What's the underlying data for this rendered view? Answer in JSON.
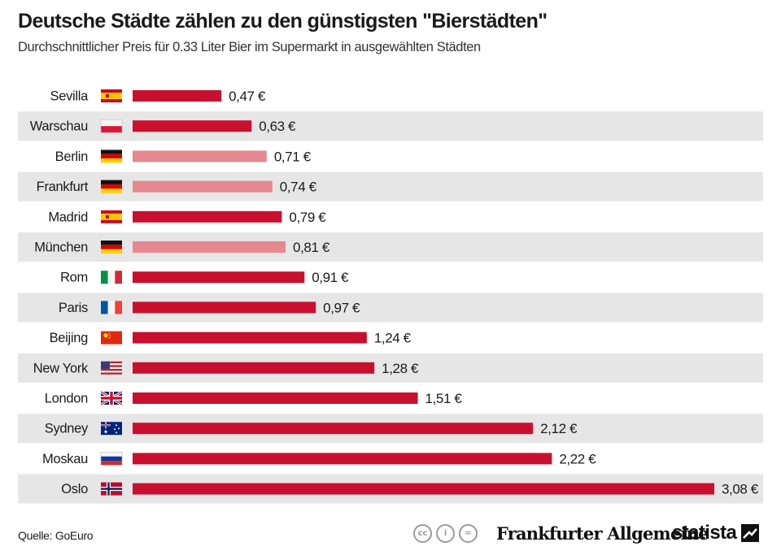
{
  "header": {
    "title": "Deutsche Städte zählen zu den günstigsten \"Bierstädten\"",
    "subtitle": "Durchschnittlicher Preis für 0.33 Liter Bier im Supermarkt in ausgewählten Städten"
  },
  "colors": {
    "bar_primary": "#c8102e",
    "bar_highlight": "#e5888f",
    "row_stripe": "#e6e6e6",
    "text": "#1a1a1a"
  },
  "chart_data": {
    "type": "bar",
    "orientation": "horizontal",
    "title": "Deutsche Städte zählen zu den günstigsten \"Bierstädten\"",
    "subtitle": "Durchschnittlicher Preis für 0.33 Liter Bier im Supermarkt in ausgewählten Städten",
    "xlabel": "",
    "ylabel": "",
    "unit": "€",
    "xlim": [
      0,
      3.08
    ],
    "grid": false,
    "categories": [
      "Sevilla",
      "Warschau",
      "Berlin",
      "Frankfurt",
      "Madrid",
      "München",
      "Rom",
      "Paris",
      "Beijing",
      "New York",
      "London",
      "Sydney",
      "Moskau",
      "Oslo"
    ],
    "values": [
      0.47,
      0.63,
      0.71,
      0.74,
      0.79,
      0.81,
      0.91,
      0.97,
      1.24,
      1.28,
      1.51,
      2.12,
      2.22,
      3.08
    ],
    "value_labels": [
      "0,47 €",
      "0,63 €",
      "0,71 €",
      "0,74 €",
      "0,79 €",
      "0,81 €",
      "0,91 €",
      "0,97 €",
      "1,24 €",
      "1,28 €",
      "1,51 €",
      "2,12 €",
      "2,22 €",
      "3,08 €"
    ],
    "flags": [
      "spain-flag-icon",
      "poland-flag-icon",
      "germany-flag-icon",
      "germany-flag-icon",
      "spain-flag-icon",
      "germany-flag-icon",
      "italy-flag-icon",
      "france-flag-icon",
      "china-flag-icon",
      "usa-flag-icon",
      "uk-flag-icon",
      "australia-flag-icon",
      "russia-flag-icon",
      "norway-flag-icon"
    ],
    "highlighted": [
      false,
      false,
      true,
      true,
      false,
      true,
      false,
      false,
      false,
      false,
      false,
      false,
      false,
      false
    ]
  },
  "footer": {
    "source": "Quelle: GoEuro",
    "license_icons": [
      "cc-icon",
      "person-icon",
      "equals-icon"
    ],
    "license_glyphs": [
      "cc",
      "i",
      "="
    ],
    "brand_faz": "Frankfurter Allgemeine",
    "brand_statista": "statista"
  }
}
